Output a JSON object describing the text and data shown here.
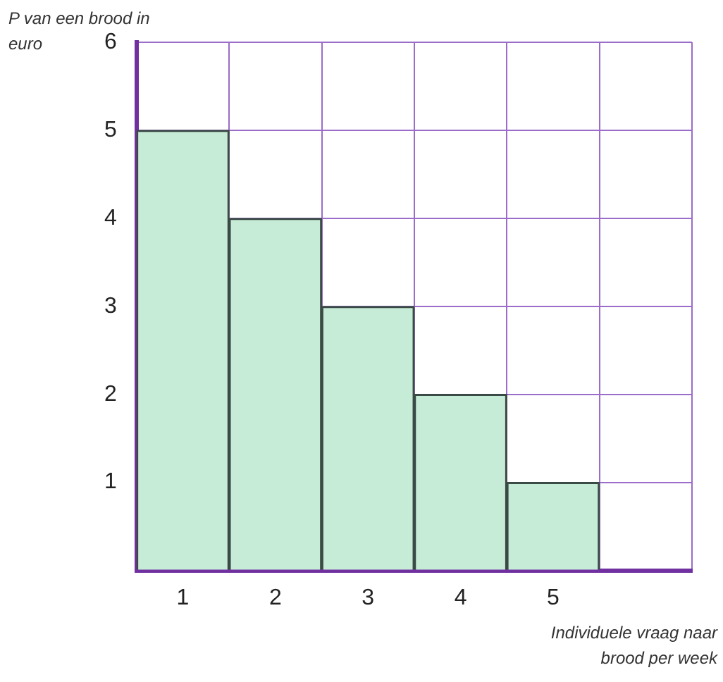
{
  "chart_data": {
    "type": "bar",
    "ylabel": "P van een brood in euro",
    "xlabel": "Individuele vraag naar brood per week",
    "categories": [
      "1",
      "2",
      "3",
      "4",
      "5",
      null
    ],
    "values": [
      5,
      4,
      3,
      2,
      1,
      null
    ],
    "color": "#c6ebd6",
    "ylim": [
      0,
      6
    ],
    "yticks": [
      {
        "value": 0,
        "label": null
      },
      1,
      2,
      3,
      4,
      5,
      6
    ],
    "grid": true,
    "legend": false
  }
}
